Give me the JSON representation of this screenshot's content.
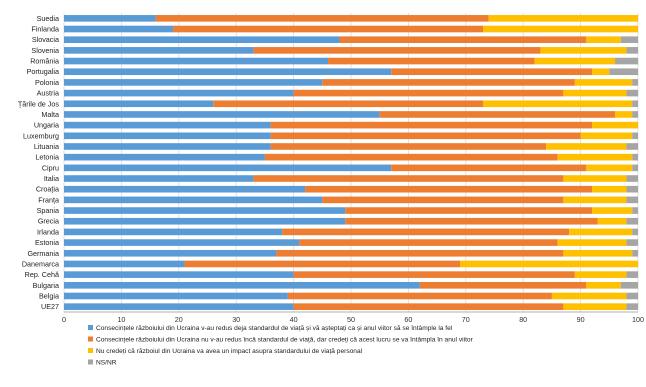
{
  "chart_data": {
    "type": "bar",
    "orientation": "horizontal",
    "stacked": true,
    "categories": [
      "Suedia",
      "Finlanda",
      "Slovacia",
      "Slovenia",
      "România",
      "Portugalia",
      "Polonia",
      "Austria",
      "Țările de Jos",
      "Malta",
      "Ungaria",
      "Luxemburg",
      "Lituania",
      "Letonia",
      "Cipru",
      "Italia",
      "Croația",
      "Franța",
      "Spania",
      "Grecia",
      "Irlanda",
      "Estonia",
      "Germania",
      "Danemarca",
      "Rep. Cehă",
      "Bulgaria",
      "Belgia",
      "UE27"
    ],
    "series": [
      {
        "name": "Consecințele războiului din Ucraina v-au redus deja standardul de viață și vă așteptați ca și anul viitor să se întâmple la fel",
        "color": "#5b9bd5",
        "values": [
          16,
          19,
          48,
          33,
          46,
          57,
          45,
          40,
          26,
          55,
          36,
          36,
          36,
          35,
          57,
          33,
          42,
          45,
          49,
          49,
          38,
          41,
          37,
          21,
          40,
          62,
          39,
          40
        ]
      },
      {
        "name": "Consecințele războiului din Ucraina nu v-au redus încă standardul de viață, dar credeți că acest lucru se va întâmpla în anul viitor",
        "color": "#ed7d31",
        "values": [
          58,
          54,
          43,
          50,
          36,
          35,
          44,
          47,
          47,
          41,
          56,
          54,
          48,
          51,
          34,
          54,
          50,
          42,
          43,
          44,
          50,
          45,
          50,
          48,
          49,
          29,
          46,
          47
        ]
      },
      {
        "name": "Nu credeți că războiul din Ucraina va avea un impact asupra standardului de viață personal",
        "color": "#ffc000",
        "values": [
          26,
          27,
          6,
          15,
          14,
          3,
          10,
          11,
          26,
          3,
          8,
          9,
          14,
          13,
          8,
          11,
          6,
          11,
          7,
          5,
          11,
          12,
          12,
          31,
          9,
          6,
          13,
          11
        ]
      },
      {
        "name": "NS/NR",
        "color": "#a5a5a5",
        "values": [
          0,
          0,
          3,
          2,
          4,
          5,
          1,
          2,
          1,
          1,
          0,
          1,
          2,
          1,
          1,
          2,
          2,
          2,
          1,
          2,
          1,
          2,
          1,
          0,
          2,
          3,
          2,
          2
        ]
      }
    ],
    "xlim": [
      0,
      100
    ],
    "xticks": [
      "0",
      "10",
      "20",
      "30",
      "40",
      "50",
      "60",
      "70",
      "80",
      "90",
      "100"
    ],
    "grid": true,
    "legend_position": "bottom"
  }
}
